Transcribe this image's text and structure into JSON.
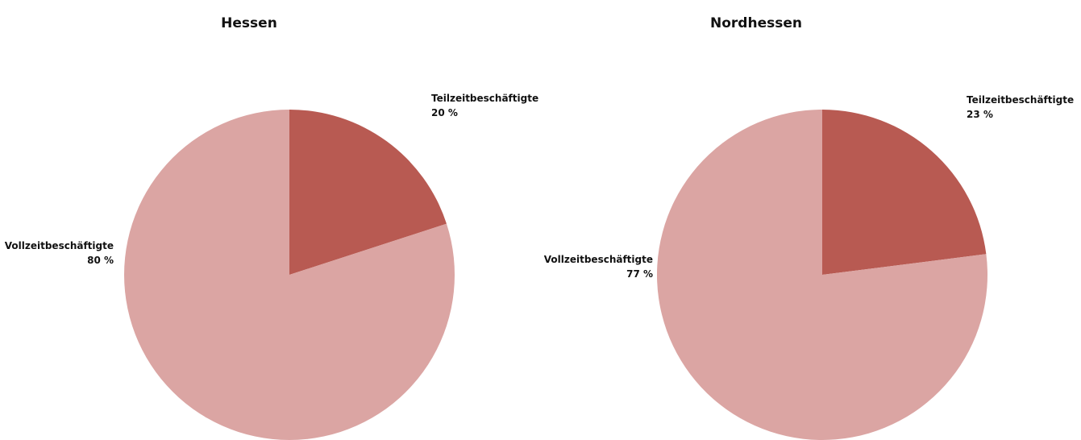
{
  "chart_data": [
    {
      "type": "pie",
      "title": "Hessen",
      "categories": [
        "Teilzeitbeschäftigte",
        "Vollzeitbeschäftigte"
      ],
      "values": [
        20,
        80
      ],
      "value_labels": [
        "20 %",
        "80 %"
      ],
      "colors": [
        "#b85a52",
        "#dba5a3"
      ]
    },
    {
      "type": "pie",
      "title": "Nordhessen",
      "categories": [
        "Teilzeitbeschäftigte",
        "Vollzeitbeschäftigte"
      ],
      "values": [
        23,
        77
      ],
      "value_labels": [
        "23 %",
        "77 %"
      ],
      "colors": [
        "#b85a52",
        "#dba5a3"
      ]
    }
  ]
}
